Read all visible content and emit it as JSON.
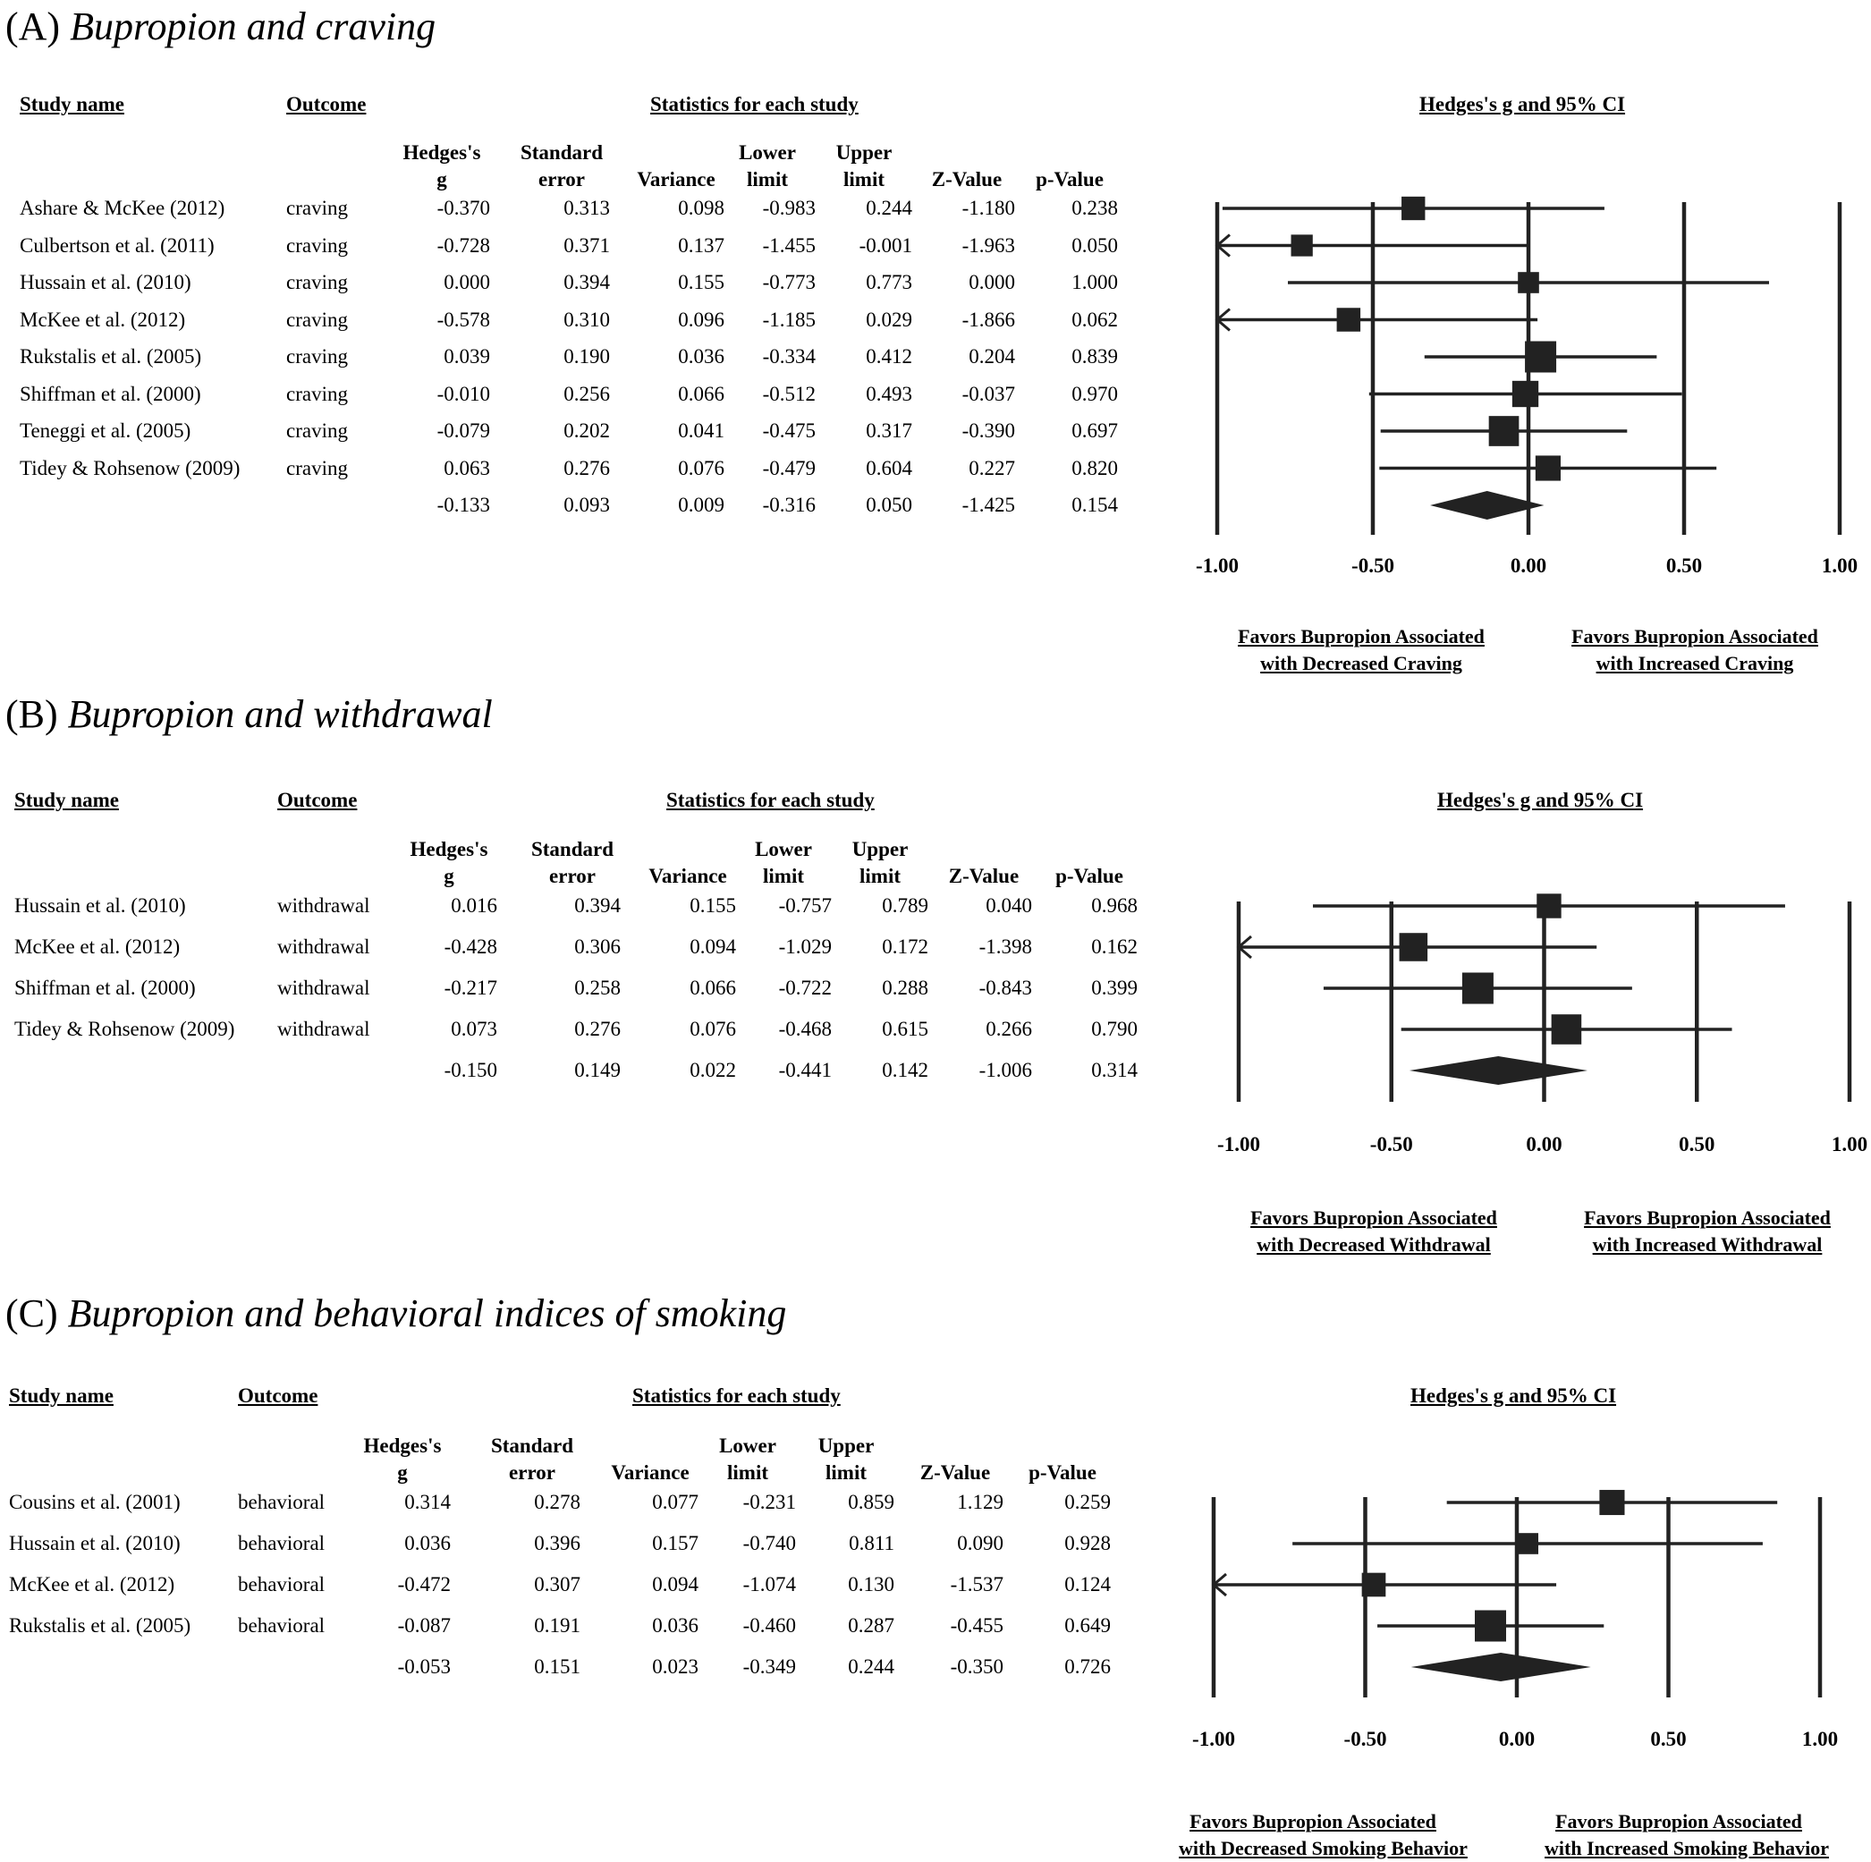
{
  "chart_data": [
    {
      "type": "forest",
      "panel_label": "(A)",
      "title": "Bupropion and craving",
      "headers": {
        "study": "Study name",
        "outcome": "Outcome",
        "stats": "Statistics for each study",
        "plot": "Hedges's g and 95% CI",
        "columns": [
          {
            "l1": "Hedges's",
            "l2": "g"
          },
          {
            "l1": "Standard",
            "l2": "error"
          },
          {
            "l1": "",
            "l2": "Variance"
          },
          {
            "l1": "Lower",
            "l2": "limit"
          },
          {
            "l1": "Upper",
            "l2": "limit"
          },
          {
            "l1": "",
            "l2": "Z-Value"
          },
          {
            "l1": "",
            "l2": "p-Value"
          }
        ]
      },
      "studies": [
        {
          "name": "Ashare & McKee (2012)",
          "outcome": "craving",
          "g": "-0.370",
          "se": "0.313",
          "var": "0.098",
          "lower": "-0.983",
          "upper": "0.244",
          "z": "-1.180",
          "p": "0.238"
        },
        {
          "name": "Culbertson et al. (2011)",
          "outcome": "craving",
          "g": "-0.728",
          "se": "0.371",
          "var": "0.137",
          "lower": "-1.455",
          "upper": "-0.001",
          "z": "-1.963",
          "p": "0.050"
        },
        {
          "name": "Hussain et al. (2010)",
          "outcome": "craving",
          "g": "0.000",
          "se": "0.394",
          "var": "0.155",
          "lower": "-0.773",
          "upper": "0.773",
          "z": "0.000",
          "p": "1.000"
        },
        {
          "name": "McKee et al. (2012)",
          "outcome": "craving",
          "g": "-0.578",
          "se": "0.310",
          "var": "0.096",
          "lower": "-1.185",
          "upper": "0.029",
          "z": "-1.866",
          "p": "0.062"
        },
        {
          "name": "Rukstalis et al. (2005)",
          "outcome": "craving",
          "g": "0.039",
          "se": "0.190",
          "var": "0.036",
          "lower": "-0.334",
          "upper": "0.412",
          "z": "0.204",
          "p": "0.839"
        },
        {
          "name": "Shiffman et al. (2000)",
          "outcome": "craving",
          "g": "-0.010",
          "se": "0.256",
          "var": "0.066",
          "lower": "-0.512",
          "upper": "0.493",
          "z": "-0.037",
          "p": "0.970"
        },
        {
          "name": "Teneggi et al. (2005)",
          "outcome": "craving",
          "g": "-0.079",
          "se": "0.202",
          "var": "0.041",
          "lower": "-0.475",
          "upper": "0.317",
          "z": "-0.390",
          "p": "0.697"
        },
        {
          "name": "Tidey & Rohsenow (2009)",
          "outcome": "craving",
          "g": "0.063",
          "se": "0.276",
          "var": "0.076",
          "lower": "-0.479",
          "upper": "0.604",
          "z": "0.227",
          "p": "0.820"
        }
      ],
      "summary": {
        "g": "-0.133",
        "se": "0.093",
        "var": "0.009",
        "lower": "-0.316",
        "upper": "0.050",
        "z": "-1.425",
        "p": "0.154"
      },
      "xlim": [
        -1,
        1
      ],
      "ticks": [
        "-1.00",
        "-0.50",
        "0.00",
        "0.50",
        "1.00"
      ],
      "favors_left": [
        "Favors Bupropion Associated",
        "with Decreased Craving"
      ],
      "favors_right": [
        "Favors Bupropion Associated",
        "with Increased Craving"
      ]
    },
    {
      "type": "forest",
      "panel_label": "(B)",
      "title": "Bupropion and withdrawal",
      "headers": {
        "study": "Study name",
        "outcome": "Outcome",
        "stats": "Statistics for each study",
        "plot": "Hedges's g and 95% CI",
        "columns": [
          {
            "l1": "Hedges's",
            "l2": "g"
          },
          {
            "l1": "Standard",
            "l2": "error"
          },
          {
            "l1": "",
            "l2": "Variance"
          },
          {
            "l1": "Lower",
            "l2": "limit"
          },
          {
            "l1": "Upper",
            "l2": "limit"
          },
          {
            "l1": "",
            "l2": "Z-Value"
          },
          {
            "l1": "",
            "l2": "p-Value"
          }
        ]
      },
      "studies": [
        {
          "name": "Hussain et al. (2010)",
          "outcome": "withdrawal",
          "g": "0.016",
          "se": "0.394",
          "var": "0.155",
          "lower": "-0.757",
          "upper": "0.789",
          "z": "0.040",
          "p": "0.968"
        },
        {
          "name": "McKee et al. (2012)",
          "outcome": "withdrawal",
          "g": "-0.428",
          "se": "0.306",
          "var": "0.094",
          "lower": "-1.029",
          "upper": "0.172",
          "z": "-1.398",
          "p": "0.162"
        },
        {
          "name": "Shiffman et al. (2000)",
          "outcome": "withdrawal",
          "g": "-0.217",
          "se": "0.258",
          "var": "0.066",
          "lower": "-0.722",
          "upper": "0.288",
          "z": "-0.843",
          "p": "0.399"
        },
        {
          "name": "Tidey & Rohsenow (2009)",
          "outcome": "withdrawal",
          "g": "0.073",
          "se": "0.276",
          "var": "0.076",
          "lower": "-0.468",
          "upper": "0.615",
          "z": "0.266",
          "p": "0.790"
        }
      ],
      "summary": {
        "g": "-0.150",
        "se": "0.149",
        "var": "0.022",
        "lower": "-0.441",
        "upper": "0.142",
        "z": "-1.006",
        "p": "0.314"
      },
      "xlim": [
        -1,
        1
      ],
      "ticks": [
        "-1.00",
        "-0.50",
        "0.00",
        "0.50",
        "1.00"
      ],
      "favors_left": [
        "Favors Bupropion Associated",
        "with Decreased Withdrawal"
      ],
      "favors_right": [
        "Favors Bupropion Associated",
        "with Increased Withdrawal"
      ]
    },
    {
      "type": "forest",
      "panel_label": "(C)",
      "title": "Bupropion and behavioral indices of smoking",
      "headers": {
        "study": "Study name",
        "outcome": "Outcome",
        "stats": "Statistics for each study",
        "plot": "Hedges's g and 95% CI",
        "columns": [
          {
            "l1": "Hedges's",
            "l2": "g"
          },
          {
            "l1": "Standard",
            "l2": "error"
          },
          {
            "l1": "",
            "l2": "Variance"
          },
          {
            "l1": "Lower",
            "l2": "limit"
          },
          {
            "l1": "Upper",
            "l2": "limit"
          },
          {
            "l1": "",
            "l2": "Z-Value"
          },
          {
            "l1": "",
            "l2": "p-Value"
          }
        ]
      },
      "studies": [
        {
          "name": "Cousins et al. (2001)",
          "outcome": "behavioral",
          "g": "0.314",
          "se": "0.278",
          "var": "0.077",
          "lower": "-0.231",
          "upper": "0.859",
          "z": "1.129",
          "p": "0.259"
        },
        {
          "name": "Hussain et al. (2010)",
          "outcome": "behavioral",
          "g": "0.036",
          "se": "0.396",
          "var": "0.157",
          "lower": "-0.740",
          "upper": "0.811",
          "z": "0.090",
          "p": "0.928"
        },
        {
          "name": "McKee et al. (2012)",
          "outcome": "behavioral",
          "g": "-0.472",
          "se": "0.307",
          "var": "0.094",
          "lower": "-1.074",
          "upper": "0.130",
          "z": "-1.537",
          "p": "0.124"
        },
        {
          "name": "Rukstalis et al. (2005)",
          "outcome": "behavioral",
          "g": "-0.087",
          "se": "0.191",
          "var": "0.036",
          "lower": "-0.460",
          "upper": "0.287",
          "z": "-0.455",
          "p": "0.649"
        }
      ],
      "summary": {
        "g": "-0.053",
        "se": "0.151",
        "var": "0.023",
        "lower": "-0.349",
        "upper": "0.244",
        "z": "-0.350",
        "p": "0.726"
      },
      "xlim": [
        -1,
        1
      ],
      "ticks": [
        "-1.00",
        "-0.50",
        "0.00",
        "0.50",
        "1.00"
      ],
      "favors_left": [
        "Favors Bupropion Associated",
        "with Decreased Smoking Behavior"
      ],
      "favors_right": [
        "Favors Bupropion Associated",
        "with Increased Smoking Behavior"
      ]
    }
  ]
}
